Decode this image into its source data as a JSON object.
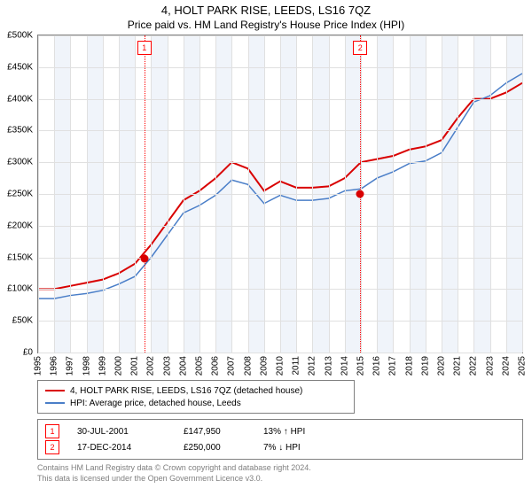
{
  "title": "4, HOLT PARK RISE, LEEDS, LS16 7QZ",
  "subtitle": "Price paid vs. HM Land Registry's House Price Index (HPI)",
  "chart": {
    "type": "line",
    "background_color": "#ffffff",
    "grid_color": "#e0e0e0",
    "border_color": "#808080",
    "alt_band_color": "#f0f4fa",
    "y": {
      "min": 0,
      "max": 500000,
      "step": 50000,
      "labels": [
        "£0",
        "£50K",
        "£100K",
        "£150K",
        "£200K",
        "£250K",
        "£300K",
        "£350K",
        "£400K",
        "£450K",
        "£500K"
      ],
      "label_fontsize": 10
    },
    "x": {
      "years": [
        1995,
        1996,
        1997,
        1998,
        1999,
        2000,
        2001,
        2002,
        2003,
        2004,
        2005,
        2006,
        2007,
        2008,
        2009,
        2010,
        2011,
        2012,
        2013,
        2014,
        2015,
        2016,
        2017,
        2018,
        2019,
        2020,
        2021,
        2022,
        2023,
        2024,
        2025
      ],
      "label_fontsize": 10
    },
    "series": [
      {
        "id": "subject",
        "label": "4, HOLT PARK RISE, LEEDS, LS16 7QZ (detached house)",
        "color": "#d90000",
        "line_width": 2,
        "values_by_year": {
          "1995": 100000,
          "1996": 100000,
          "1997": 105000,
          "1998": 110000,
          "1999": 115000,
          "2000": 125000,
          "2001": 140000,
          "2002": 170000,
          "2003": 205000,
          "2004": 240000,
          "2005": 255000,
          "2006": 275000,
          "2007": 300000,
          "2008": 290000,
          "2009": 255000,
          "2010": 270000,
          "2011": 260000,
          "2012": 260000,
          "2013": 262000,
          "2014": 275000,
          "2015": 300000,
          "2016": 305000,
          "2017": 310000,
          "2018": 320000,
          "2019": 325000,
          "2020": 335000,
          "2021": 370000,
          "2022": 400000,
          "2023": 400000,
          "2024": 410000,
          "2025": 425000
        }
      },
      {
        "id": "hpi",
        "label": "HPI: Average price, detached house, Leeds",
        "color": "#4a7ec8",
        "line_width": 1.5,
        "values_by_year": {
          "1995": 85000,
          "1996": 85000,
          "1997": 90000,
          "1998": 93000,
          "1999": 98000,
          "2000": 108000,
          "2001": 120000,
          "2002": 150000,
          "2003": 185000,
          "2004": 220000,
          "2005": 232000,
          "2006": 248000,
          "2007": 272000,
          "2008": 265000,
          "2009": 235000,
          "2010": 248000,
          "2011": 240000,
          "2012": 240000,
          "2013": 243000,
          "2014": 255000,
          "2015": 258000,
          "2016": 275000,
          "2017": 285000,
          "2018": 298000,
          "2019": 302000,
          "2020": 315000,
          "2021": 355000,
          "2022": 395000,
          "2023": 405000,
          "2024": 425000,
          "2025": 440000
        }
      }
    ],
    "sale_markers": [
      {
        "n": "1",
        "year": 2001.58,
        "price": 147950,
        "dot_color": "#d90000"
      },
      {
        "n": "2",
        "year": 2014.96,
        "price": 250000,
        "dot_color": "#d90000"
      }
    ]
  },
  "legend": {
    "items": [
      {
        "color": "#d90000",
        "text": "4, HOLT PARK RISE, LEEDS, LS16 7QZ (detached house)"
      },
      {
        "color": "#4a7ec8",
        "text": "HPI: Average price, detached house, Leeds"
      }
    ]
  },
  "sales": [
    {
      "n": "1",
      "date": "30-JUL-2001",
      "price": "£147,950",
      "hpi": "13% ↑ HPI"
    },
    {
      "n": "2",
      "date": "17-DEC-2014",
      "price": "£250,000",
      "hpi": "7% ↓ HPI"
    }
  ],
  "footer": {
    "line1": "Contains HM Land Registry data © Crown copyright and database right 2024.",
    "line2": "This data is licensed under the Open Government Licence v3.0."
  }
}
